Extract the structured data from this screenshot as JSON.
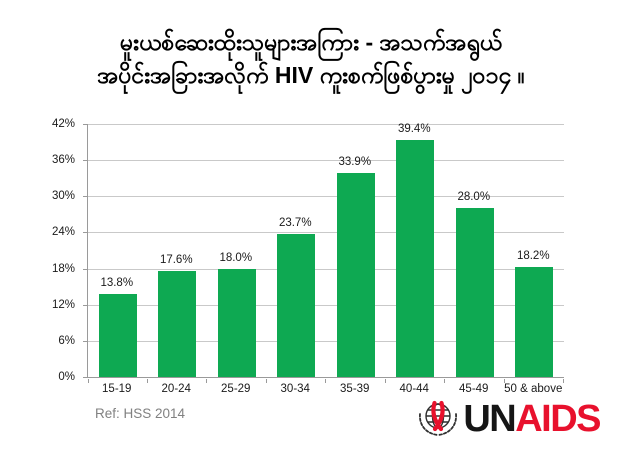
{
  "title": {
    "line1": "မူးယစ်ဆေးထိုးသူများအကြား - အသက်အရွယ်",
    "line2": "အပိုင်းအခြားအလိုက် HIV ကူးစက်ဖြစ်ပွားမှု ၂၀၁၄ ။"
  },
  "chart_data": {
    "type": "bar",
    "title_my": "မူးယစ်ဆေးထိုးသူများအကြား - အသက်အရွယ် အပိုင်းအခြားအလိုက် HIV ကူးစက်ဖြစ်ပွားမှု ၂၀၁၄ ။",
    "title_en_gloss": "HIV prevalence among people who inject drugs, by age group, 2014",
    "categories": [
      "15-19",
      "20-24",
      "25-29",
      "30-34",
      "35-39",
      "40-44",
      "45-49",
      "50 & above"
    ],
    "values": [
      13.8,
      17.6,
      18.0,
      23.7,
      33.9,
      39.4,
      28.0,
      18.2
    ],
    "value_suffix": "%",
    "xlabel": "",
    "ylabel": "",
    "ylim": [
      0,
      42
    ],
    "yticks": [
      0,
      6,
      12,
      18,
      24,
      30,
      36,
      42
    ],
    "ytick_labels": [
      "0%",
      "6%",
      "12%",
      "18%",
      "24%",
      "30%",
      "36%",
      "42%"
    ],
    "grid": true,
    "legend": false,
    "data_labels_shown": true
  },
  "footer": {
    "ref": "Ref: HSS 2014"
  },
  "logo": {
    "un": "UN",
    "aids": "AIDS"
  },
  "colors": {
    "bar": "#0ea952",
    "grid": "#c9c9c9",
    "axis": "#9a9a9a",
    "label": "#1a1a1a",
    "ref_text": "#818181",
    "aids_red": "#e8112d",
    "emblem_dark": "#2f2f2f"
  }
}
